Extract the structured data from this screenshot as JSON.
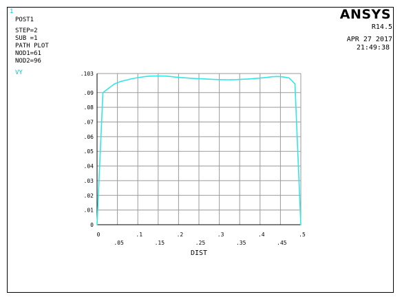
{
  "window_number": "1",
  "header": {
    "brand": "ANSYS",
    "version": "R14.5",
    "date": "APR 27 2017",
    "time": "21:49:38"
  },
  "info": {
    "lines": [
      "POST1",
      "STEP=2",
      "SUB =1",
      "PATH PLOT",
      "NOD1=61",
      "NOD2=96"
    ]
  },
  "colors": {
    "series": "#33e6e6",
    "grid": "#9a9a9a",
    "axis": "#000000"
  },
  "chart_data": {
    "type": "line",
    "xlabel": "DIST",
    "ylabel": "",
    "xlim": [
      0,
      0.5
    ],
    "ylim": [
      0,
      0.103
    ],
    "x_ticks": [
      0,
      0.05,
      0.1,
      0.15,
      0.2,
      0.25,
      0.3,
      0.35,
      0.4,
      0.45,
      0.5
    ],
    "x_tick_labels": [
      "0",
      ".05",
      ".1",
      ".15",
      ".2",
      ".25",
      ".3",
      ".35",
      ".4",
      ".45",
      ".5"
    ],
    "y_ticks": [
      0,
      0.01,
      0.02,
      0.03,
      0.04,
      0.05,
      0.06,
      0.07,
      0.08,
      0.09,
      0.103
    ],
    "y_tick_labels": [
      "0",
      ".01",
      ".02",
      ".03",
      ".04",
      ".05",
      ".06",
      ".07",
      ".08",
      ".09",
      ".103"
    ],
    "grid": true,
    "series": [
      {
        "name": "VY",
        "x": [
          0,
          0.0143,
          0.0286,
          0.0429,
          0.0571,
          0.0714,
          0.0857,
          0.1,
          0.1143,
          0.1286,
          0.1429,
          0.1571,
          0.1714,
          0.1857,
          0.2,
          0.2143,
          0.2286,
          0.2429,
          0.2571,
          0.2714,
          0.2857,
          0.3,
          0.3143,
          0.3286,
          0.3429,
          0.3571,
          0.3714,
          0.3857,
          0.4,
          0.4143,
          0.4286,
          0.4429,
          0.4571,
          0.4714,
          0.4857,
          0.5
        ],
        "y": [
          0,
          0.09,
          0.093,
          0.096,
          0.0975,
          0.0985,
          0.0995,
          0.1002,
          0.1008,
          0.1012,
          0.1013,
          0.1013,
          0.1012,
          0.1008,
          0.1004,
          0.1001,
          0.0998,
          0.0996,
          0.0994,
          0.0992,
          0.099,
          0.0989,
          0.0988,
          0.0988,
          0.0989,
          0.0991,
          0.0993,
          0.0996,
          0.0999,
          0.1003,
          0.1008,
          0.101,
          0.1007,
          0.1,
          0.096,
          0
        ]
      }
    ]
  }
}
